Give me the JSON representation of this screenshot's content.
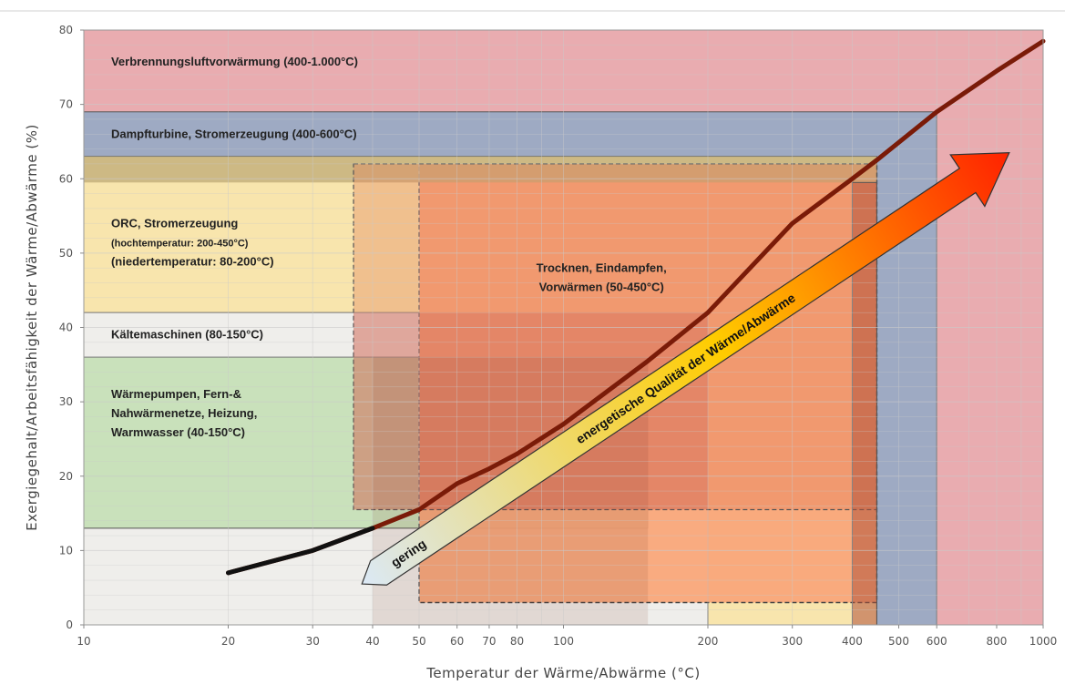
{
  "chart_data": {
    "type": "area",
    "xlabel": "Temperatur der Wärme/Abwärme (°C)",
    "ylabel": "Exergiegehalt/Arbeitsfähigkeit der Wärme/Abwärme (%)",
    "xscale": "log",
    "xlim": [
      10,
      1000
    ],
    "ylim": [
      0,
      80
    ],
    "x_ticks": [
      10,
      20,
      30,
      40,
      50,
      60,
      70,
      80,
      100,
      200,
      300,
      400,
      500,
      600,
      800,
      1000
    ],
    "x_tick_labels": [
      "10",
      "20",
      "30",
      "40",
      "50",
      "60",
      "70",
      "80",
      "100",
      "200",
      "300",
      "400",
      "500",
      "600",
      "800",
      "1000"
    ],
    "y_ticks": [
      0,
      10,
      20,
      30,
      40,
      50,
      60,
      70,
      80
    ],
    "grid": true,
    "regions": [
      {
        "id": "verbrennung",
        "lines": [
          "Verbrennungsluftvorwärmung (400-1.000°C)"
        ],
        "x0": 10,
        "x1": 1000,
        "y0": 0,
        "y1": 80,
        "color": "#e8a8ac"
      },
      {
        "id": "dampf",
        "lines": [
          "Dampfturbine, Stromerzeugung (400-600°C)"
        ],
        "x0": 10,
        "x1": 600,
        "y0": 0,
        "y1": 69,
        "color": "#9aaac4"
      },
      {
        "id": "orc",
        "lines": [
          "ORC, Stromerzeugung",
          "(hochtemperatur: 200-450°C)",
          "(niedertemperatur: 80-200°C)"
        ],
        "x0": 10,
        "x1": 450,
        "y0": 0,
        "y1": 63,
        "color": "#fde8ac"
      },
      {
        "id": "kaelte",
        "lines": [
          "Kältemaschinen (80-150°C)"
        ],
        "x0": 10,
        "x1": 200,
        "y0": 0,
        "y1": 42,
        "color": "#eeeeee"
      },
      {
        "id": "waerme",
        "lines": [
          "Wärmepumpen, Fern-&",
          "Nahwärmenetze, Heizung,",
          "Warmwasser (40-150°C)"
        ],
        "x0": 10,
        "x1": 150,
        "y0": 13,
        "y1": 36,
        "color": "#c6dfb8"
      },
      {
        "id": "trocknen",
        "lines": [
          "Trocknen, Eindampfen,",
          "Vorwärmen (50-450°C)"
        ],
        "x0": 50,
        "x1": 450,
        "y0": 3,
        "y1": 62,
        "color": "#f9a67a"
      }
    ],
    "curve": {
      "x": [
        20,
        30,
        40,
        50,
        60,
        70,
        80,
        100,
        150,
        200,
        300,
        400,
        450,
        600,
        800,
        1000
      ],
      "y": [
        7,
        10,
        13,
        15.5,
        19,
        21,
        23,
        27,
        35.5,
        42,
        54,
        60,
        62.5,
        69,
        74.5,
        78.5
      ]
    },
    "arrow": {
      "label_start": "gering",
      "label_main": "energetische Qualität der Wärme/Abwärme"
    }
  },
  "colors": {
    "curve": "#7a1b08",
    "grid": "#c9c9c9",
    "arrow_start": "#dbe9f6",
    "arrow_mid": "#ffcc00",
    "arrow_end": "#ff2200"
  }
}
